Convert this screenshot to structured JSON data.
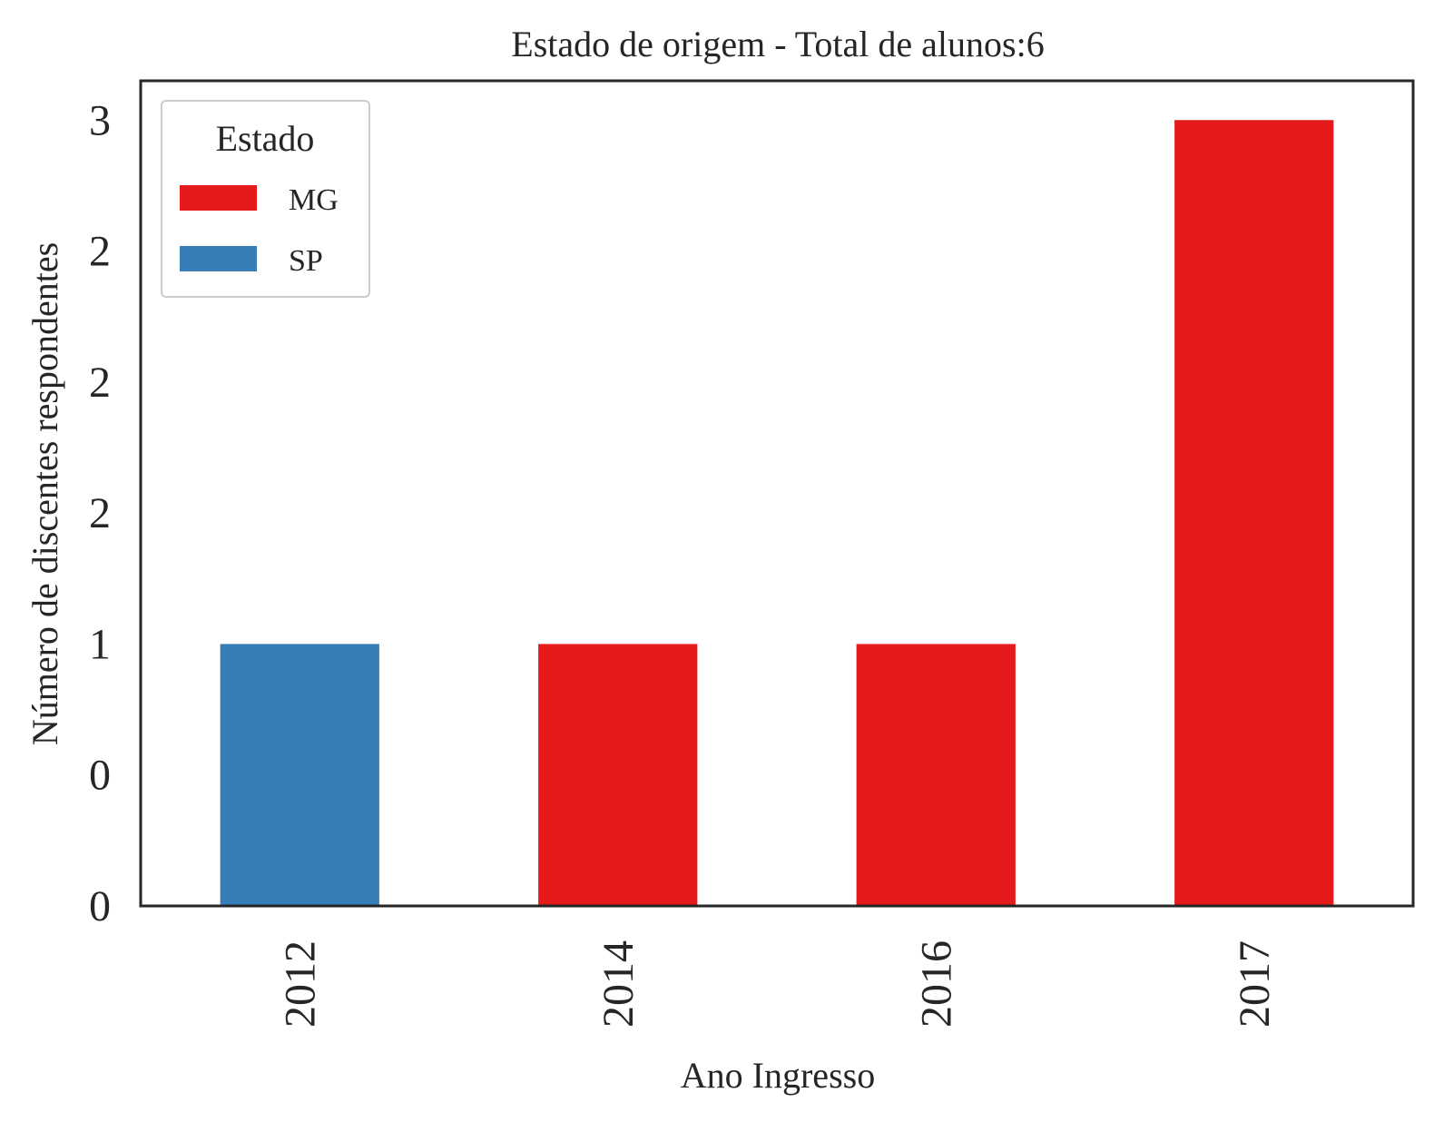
{
  "chart_data": {
    "type": "bar",
    "title": "Estado de origem - Total de alunos:6",
    "xlabel": "Ano Ingresso",
    "ylabel": "Número de discentes respondentes",
    "categories": [
      "2012",
      "2014",
      "2016",
      "2017"
    ],
    "series": [
      {
        "name": "MG",
        "color": "#e41a1c",
        "values": [
          0,
          1,
          1,
          3
        ]
      },
      {
        "name": "SP",
        "color": "#377eb8",
        "values": [
          1,
          0,
          0,
          0
        ]
      }
    ],
    "ylim": [
      0,
      3.15
    ],
    "y_ticks": [
      0,
      0.5,
      1,
      1.5,
      2,
      2.5,
      3
    ],
    "y_tick_labels": [
      "0",
      "0",
      "1",
      "2",
      "2",
      "2",
      "3"
    ],
    "legend": {
      "title": "Estado",
      "position": "top-left"
    },
    "grid": false
  }
}
